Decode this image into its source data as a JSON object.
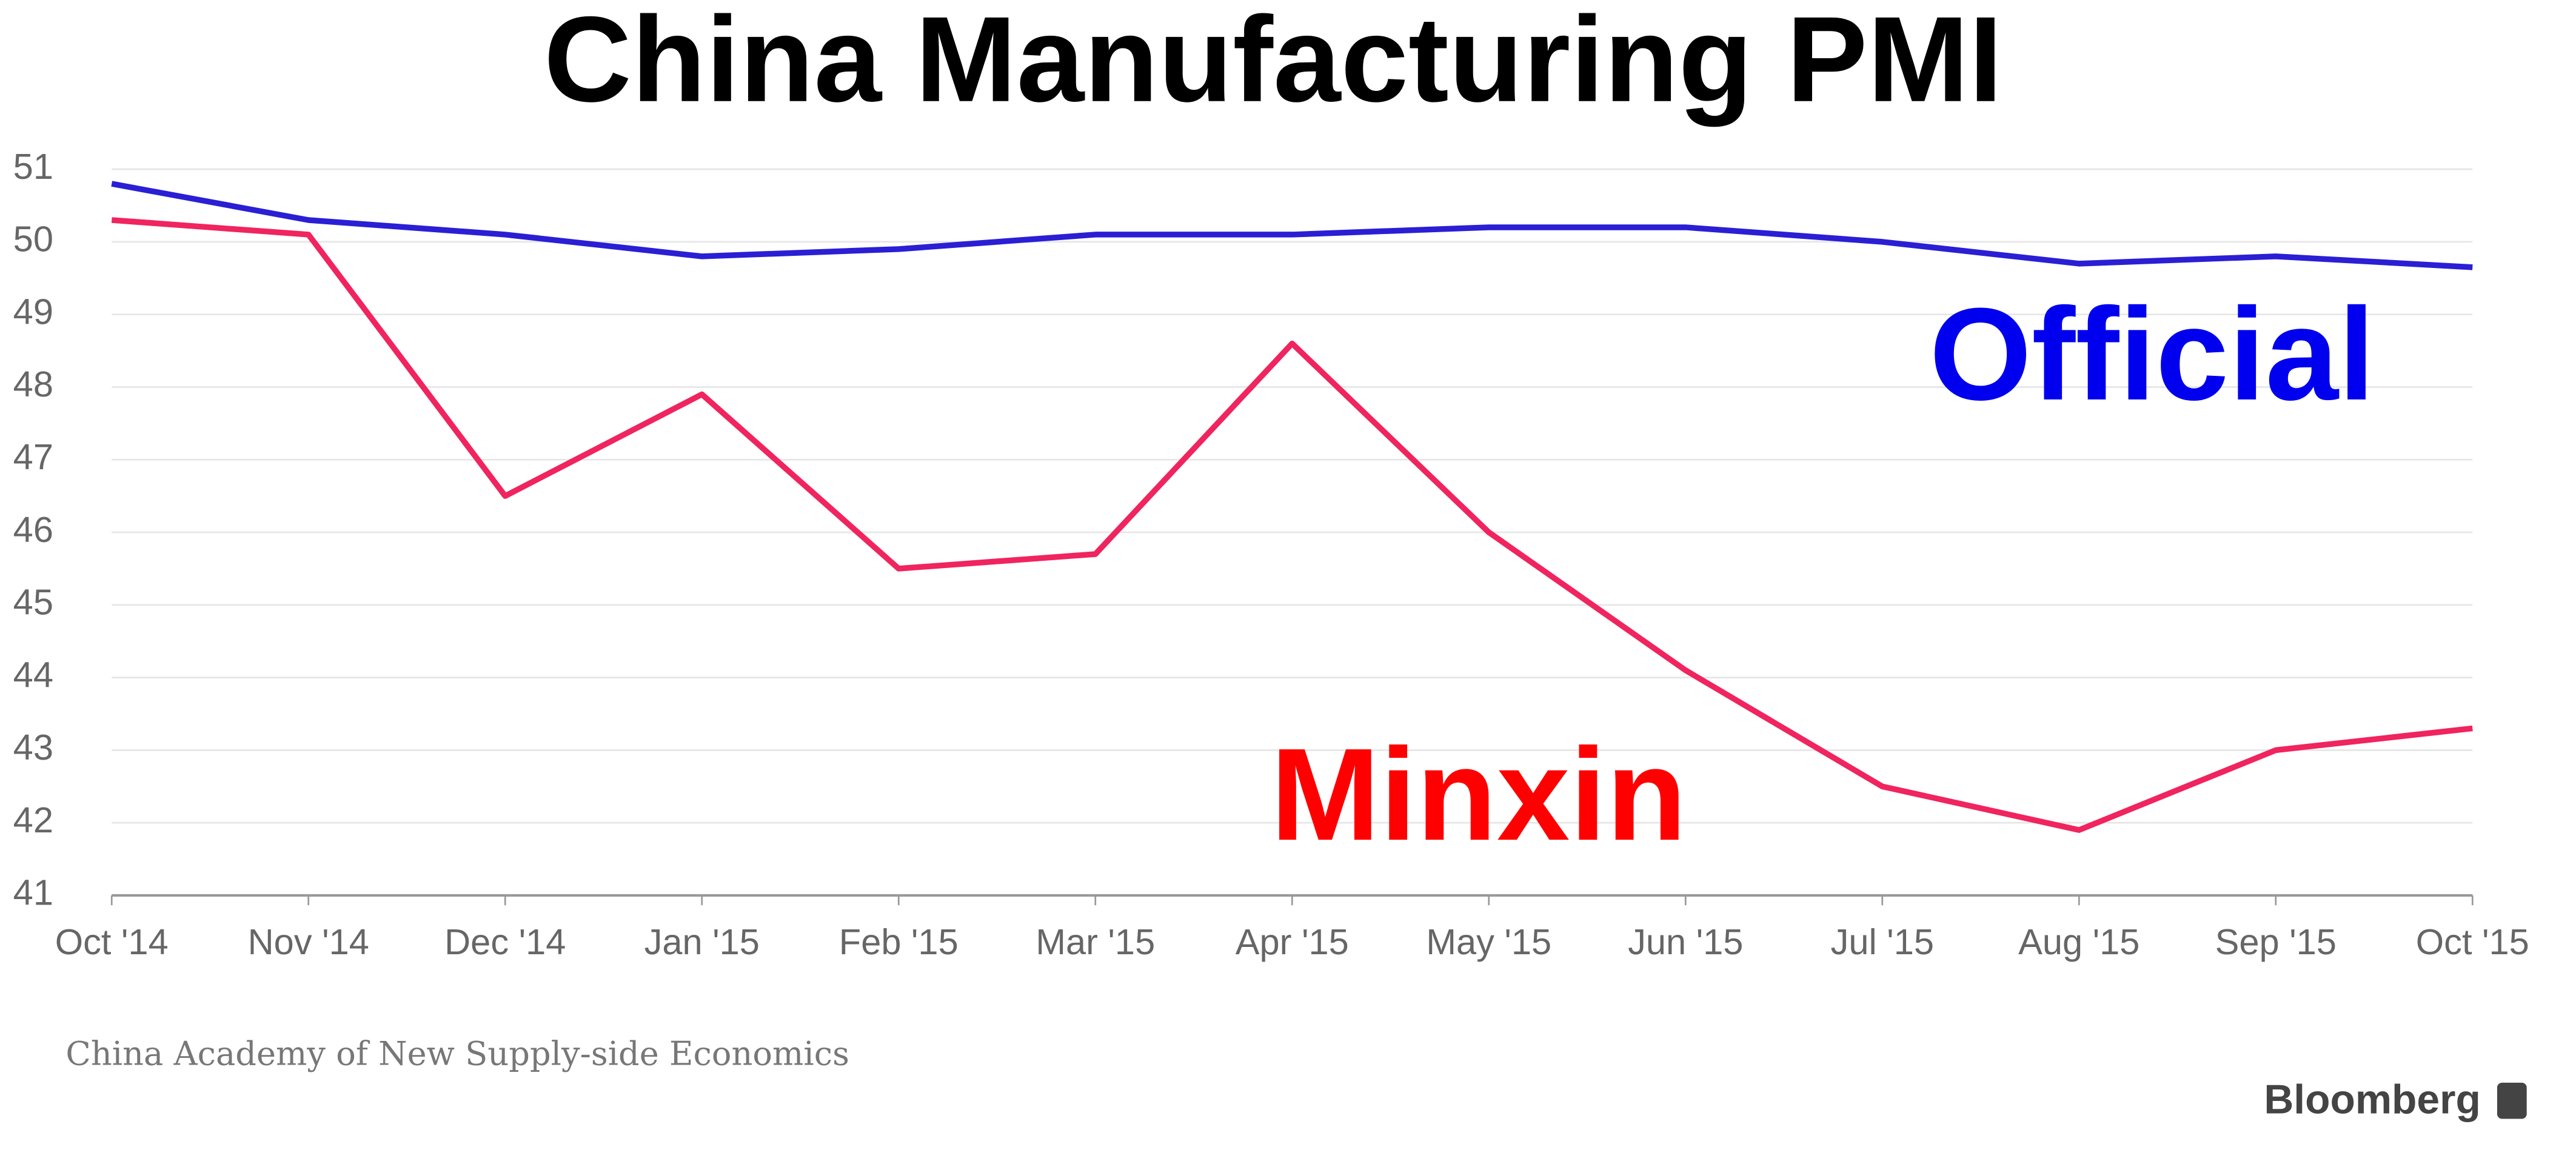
{
  "chart_data": {
    "type": "line",
    "title": "China Manufacturing PMI",
    "categories": [
      "Oct '14",
      "Nov '14",
      "Dec '14",
      "Jan '15",
      "Feb '15",
      "Mar '15",
      "Apr '15",
      "May '15",
      "Jun '15",
      "Jul '15",
      "Aug '15",
      "Sep '15",
      "Oct '15"
    ],
    "series": [
      {
        "name": "Official",
        "color": "#2a1fd4",
        "label_color": "#0000ee",
        "values": [
          50.8,
          50.3,
          50.1,
          49.8,
          49.9,
          50.1,
          50.1,
          50.2,
          50.2,
          50.0,
          49.7,
          49.8,
          49.65
        ]
      },
      {
        "name": "Minxin",
        "color": "#f0245e",
        "label_color": "#ff0000",
        "values": [
          50.3,
          50.1,
          46.5,
          47.9,
          45.5,
          45.7,
          48.6,
          46.0,
          44.1,
          42.5,
          41.9,
          43.0,
          43.3
        ]
      }
    ],
    "ylim": [
      41,
      51
    ],
    "yticks": [
      41,
      42,
      43,
      44,
      45,
      46,
      47,
      48,
      49,
      50,
      51
    ],
    "grid": true,
    "source": "China Academy of New Supply-side Economics",
    "brand": "Bloomberg"
  }
}
